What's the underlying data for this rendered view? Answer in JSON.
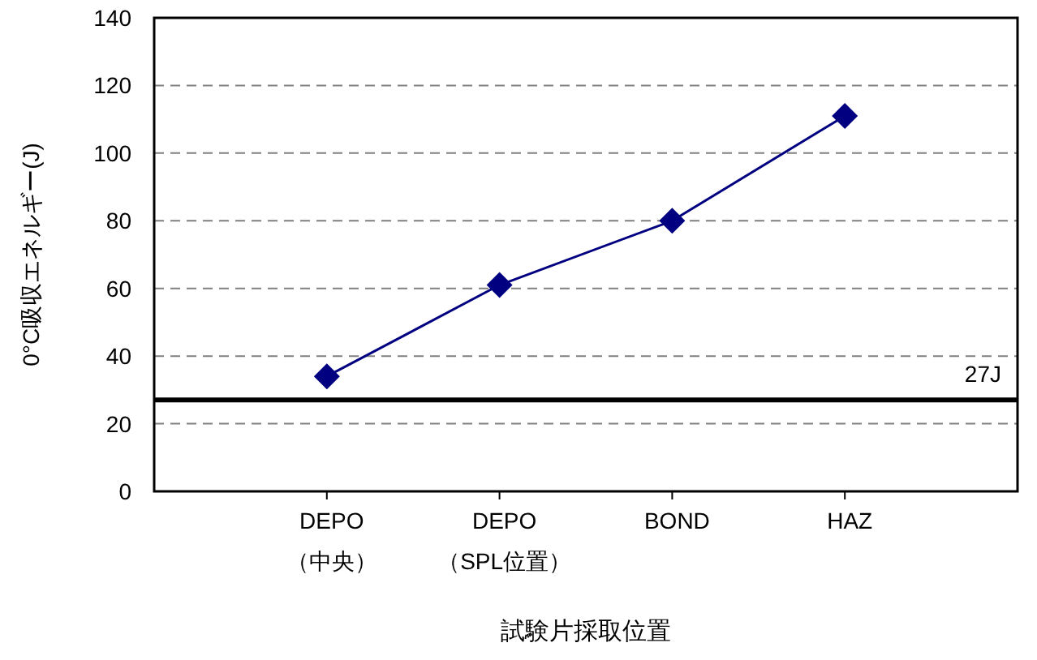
{
  "chart_data": {
    "type": "line",
    "xlabel": "試験片採取位置",
    "ylabel": "0°C吸収エネルギー(J)",
    "categories": [
      "DEPO\n（中央）",
      "DEPO\n（SPL位置）",
      "BOND",
      "HAZ"
    ],
    "series": [
      {
        "color": "#000080",
        "values": [
          34,
          61,
          80,
          111
        ]
      }
    ],
    "ylim": [
      0,
      140
    ],
    "yticks": [
      0,
      20,
      40,
      60,
      80,
      100,
      120,
      140
    ],
    "grid": "y",
    "marker": "diamond",
    "line_style": "solid",
    "ref_lines": [
      {
        "axis": "y",
        "value": 27,
        "label": "27J",
        "color": "#000000"
      }
    ]
  }
}
